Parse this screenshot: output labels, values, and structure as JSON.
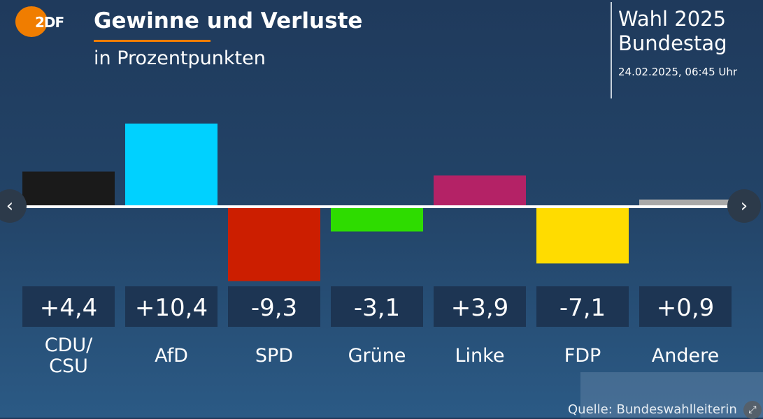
{
  "header": {
    "title": "Gewinne und Verluste",
    "subtitle": "in Prozentpunkten",
    "logo": "ZDF",
    "election": "Wahl 2025",
    "body": "Bundestag",
    "timestamp": "24.02.2025, 06:45 Uhr"
  },
  "footer": {
    "source": "Quelle: Bundeswahlleiterin"
  },
  "chart_data": {
    "type": "bar",
    "title": "Gewinne und Verluste",
    "subtitle": "in Prozentpunkten",
    "categories": [
      "CDU/\nCSU",
      "AfD",
      "SPD",
      "Grüne",
      "Linke",
      "FDP",
      "Andere"
    ],
    "values": [
      4.4,
      10.4,
      -9.3,
      -3.1,
      3.9,
      -7.1,
      0.9
    ],
    "labels": [
      "+4,4",
      "+10,4",
      "-9,3",
      "-3,1",
      "+3,9",
      "-7,1",
      "+0,9"
    ],
    "colors": [
      "#1a1a1a",
      "#00d1ff",
      "#cc1e00",
      "#2edc00",
      "#b42266",
      "#ffdc00",
      "#a9a9a9"
    ],
    "grid": false
  }
}
